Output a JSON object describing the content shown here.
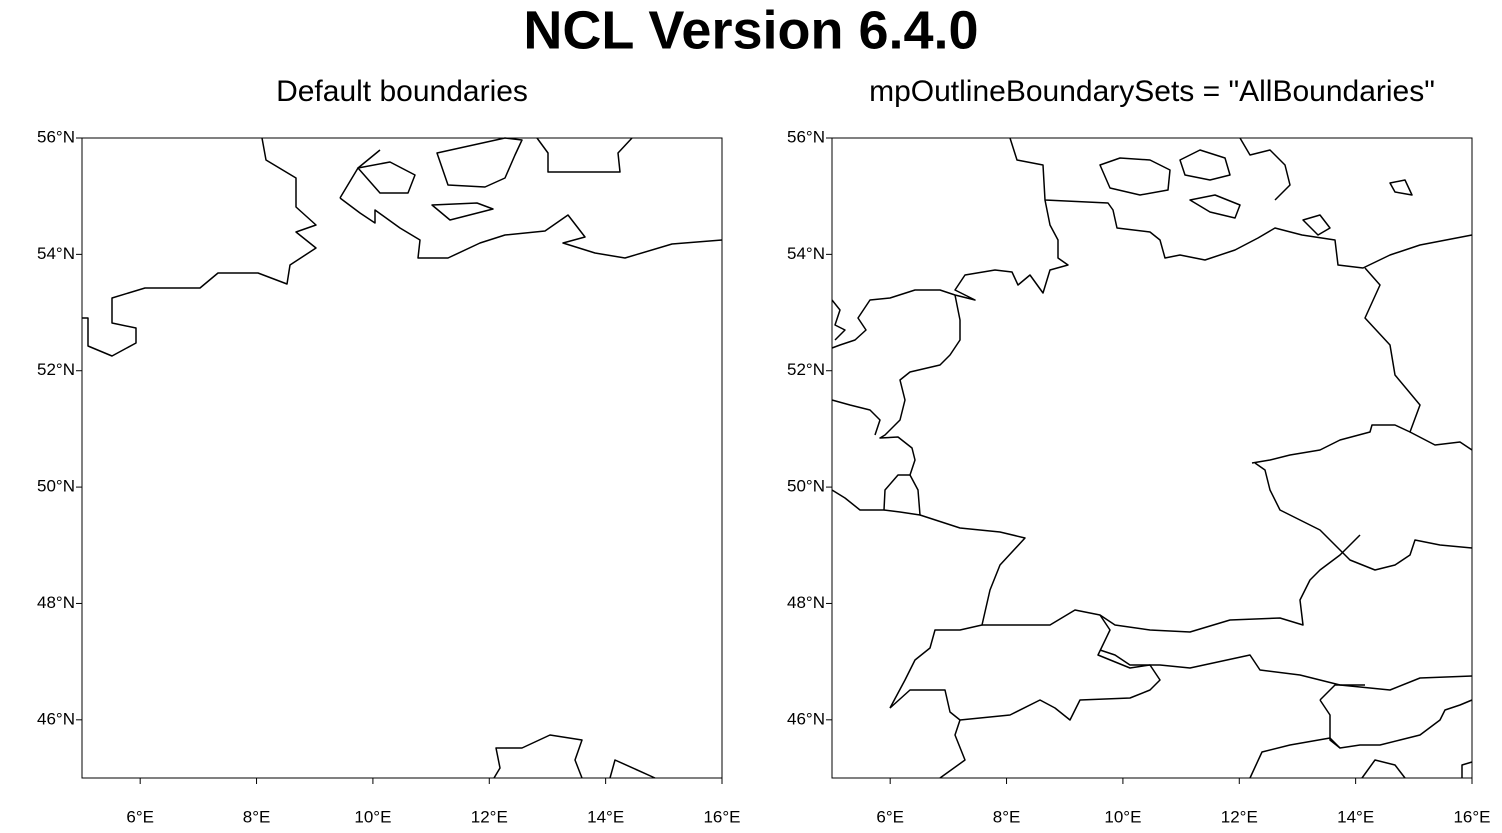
{
  "title": "NCL Version 6.4.0",
  "panels": [
    {
      "title": "Default boundaries",
      "xlim": [
        5,
        16
      ],
      "ylim": [
        45,
        56
      ],
      "xticks": [
        {
          "value": 6,
          "label": "6°E"
        },
        {
          "value": 8,
          "label": "8°E"
        },
        {
          "value": 10,
          "label": "10°E"
        },
        {
          "value": 12,
          "label": "12°E"
        },
        {
          "value": 14,
          "label": "14°E"
        },
        {
          "value": 16,
          "label": "16°E"
        }
      ],
      "yticks": [
        {
          "value": 46,
          "label": "46°N"
        },
        {
          "value": 48,
          "label": "48°N"
        },
        {
          "value": 50,
          "label": "50°N"
        },
        {
          "value": 52,
          "label": "52°N"
        },
        {
          "value": 54,
          "label": "54°N"
        },
        {
          "value": 56,
          "label": "56°N"
        }
      ]
    },
    {
      "title": "mpOutlineBoundarySets = \"AllBoundaries\"",
      "xlim": [
        5,
        16
      ],
      "ylim": [
        45,
        56
      ],
      "xticks": [
        {
          "value": 6,
          "label": "6°E"
        },
        {
          "value": 8,
          "label": "8°E"
        },
        {
          "value": 10,
          "label": "10°E"
        },
        {
          "value": 12,
          "label": "12°E"
        },
        {
          "value": 14,
          "label": "14°E"
        },
        {
          "value": 16,
          "label": "16°E"
        }
      ],
      "yticks": [
        {
          "value": 46,
          "label": "46°N"
        },
        {
          "value": 48,
          "label": "48°N"
        },
        {
          "value": 50,
          "label": "50°N"
        },
        {
          "value": 52,
          "label": "52°N"
        },
        {
          "value": 54,
          "label": "54°N"
        },
        {
          "value": 56,
          "label": "56°N"
        }
      ]
    }
  ]
}
